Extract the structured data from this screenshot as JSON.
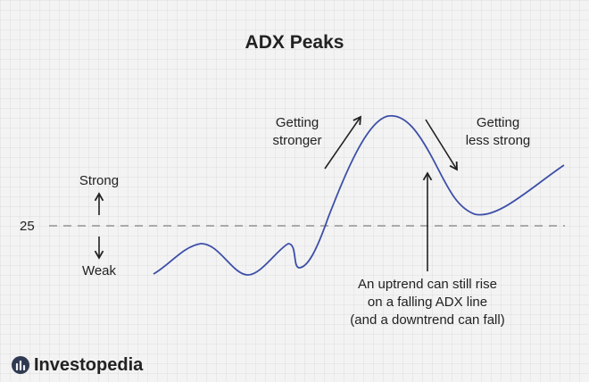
{
  "title": "ADX Peaks",
  "level": {
    "value": "25"
  },
  "labels": {
    "strong": "Strong",
    "weak": "Weak",
    "getting_stronger": [
      "Getting",
      "stronger"
    ],
    "getting_less_strong": [
      "Getting",
      "less strong"
    ],
    "note": [
      "An uptrend can still rise",
      "on a falling ADX line",
      "(and a downtrend can fall)"
    ]
  },
  "brand": {
    "name": "Investopedia"
  },
  "colors": {
    "curve": "#3d4fa8",
    "dashed_line": "#aaaaaa",
    "text": "#222222",
    "background": "#f3f3f3"
  },
  "icons": [
    "arrow-up-icon",
    "arrow-down-icon",
    "arrow-up-right-icon",
    "arrow-down-right-icon",
    "arrow-up-pointer-icon",
    "investopedia-logo-icon"
  ]
}
